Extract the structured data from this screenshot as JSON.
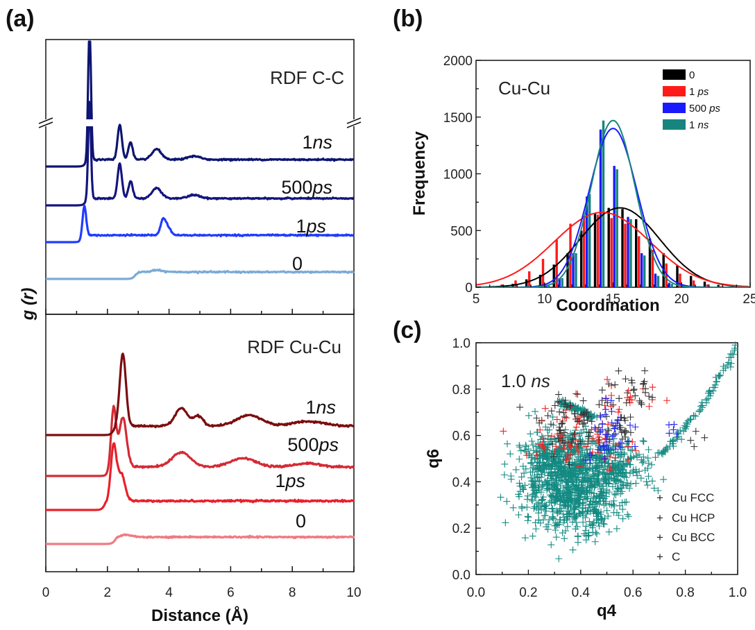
{
  "panels": {
    "a": "(a)",
    "b": "(b)",
    "c": "(c)"
  },
  "chart_data": [
    {
      "id": "a",
      "type": "line",
      "xlabel": "Distance (Å)",
      "ylabel": "g (r)",
      "xlim": [
        0,
        10
      ],
      "x_ticks": [
        "0",
        "2",
        "4",
        "6",
        "8",
        "10"
      ],
      "subplots": [
        {
          "title": "RDF C-C",
          "series": [
            {
              "label": "0",
              "label_text": "0",
              "color": "#7aaad6",
              "onset": 2.9,
              "peaks": [
                [
                  3.6,
                  0.3,
                  0.15
                ]
              ]
            },
            {
              "label": "1ps",
              "label_num": "1",
              "label_unit": "ps",
              "color": "#1f3bff",
              "onset": 1.2,
              "peaks": [
                [
                  1.25,
                  4.5,
                  0.06
                ],
                [
                  3.8,
                  2.0,
                  0.08
                ],
                [
                  3.95,
                  1.2,
                  0.1
                ]
              ]
            },
            {
              "label": "500ps",
              "label_num": "500",
              "label_unit": "ps",
              "color": "#14157e",
              "onset": 1.3,
              "peaks": [
                [
                  1.42,
                  14,
                  0.045
                ],
                [
                  2.4,
                  5.0,
                  0.07
                ],
                [
                  2.75,
                  2.5,
                  0.07
                ],
                [
                  3.6,
                  1.5,
                  0.15
                ],
                [
                  4.8,
                  0.5,
                  0.2
                ]
              ]
            },
            {
              "label": "1ns",
              "label_num": "1",
              "label_unit": "ns",
              "color": "#0d1470",
              "onset": 1.3,
              "peaks": [
                [
                  1.42,
                  20,
                  0.045
                ],
                [
                  2.4,
                  5.0,
                  0.07
                ],
                [
                  2.75,
                  2.5,
                  0.07
                ],
                [
                  3.6,
                  1.5,
                  0.15
                ],
                [
                  4.8,
                  0.5,
                  0.2
                ]
              ]
            }
          ]
        },
        {
          "title": "RDF Cu-Cu",
          "series": [
            {
              "label": "0",
              "label_text": "0",
              "color": "#f07a80",
              "onset": 2.25,
              "peaks": [
                [
                  2.6,
                  0.3,
                  0.2
                ]
              ]
            },
            {
              "label": "1ps",
              "label_num": "1",
              "label_unit": "ps",
              "color": "#e8202a",
              "onset": 1.9,
              "peaks": [
                [
                  2.2,
                  6.0,
                  0.09
                ],
                [
                  2.45,
                  3.0,
                  0.12
                ]
              ]
            },
            {
              "label": "500ps",
              "label_num": "500",
              "label_unit": "ps",
              "color": "#d42a34",
              "onset": 2.05,
              "peaks": [
                [
                  2.2,
                  6.5,
                  0.08
                ],
                [
                  2.5,
                  5.5,
                  0.12
                ],
                [
                  4.4,
                  1.6,
                  0.3
                ],
                [
                  6.4,
                  1.0,
                  0.4
                ],
                [
                  8.5,
                  0.4,
                  0.4
                ]
              ]
            },
            {
              "label": "1ns",
              "label_num": "1",
              "label_unit": "ns",
              "color": "#7a0d10",
              "onset": 2.2,
              "peaks": [
                [
                  2.5,
                  8.0,
                  0.1
                ],
                [
                  4.4,
                  2.0,
                  0.2
                ],
                [
                  4.95,
                  1.1,
                  0.15
                ],
                [
                  6.6,
                  1.2,
                  0.4
                ],
                [
                  8.5,
                  0.5,
                  0.5
                ]
              ]
            }
          ]
        }
      ]
    },
    {
      "id": "b",
      "type": "bar",
      "title": "Cu-Cu",
      "xlabel": "Coordination",
      "ylabel": "Frequency",
      "xlim": [
        5,
        25
      ],
      "ylim": [
        0,
        2000
      ],
      "x_ticks": [
        "5",
        "10",
        "15",
        "20",
        "25"
      ],
      "y_ticks": [
        "0",
        "500",
        "1000",
        "1500",
        "2000"
      ],
      "categories": [
        7,
        8,
        9,
        10,
        11,
        12,
        13,
        14,
        15,
        16,
        17,
        18,
        19,
        20,
        21,
        22,
        23,
        24
      ],
      "legend": {
        "position": "top-right",
        "entries": [
          {
            "num": "0",
            "unit": ""
          },
          {
            "num": "1 ",
            "unit": "ps"
          },
          {
            "num": "500 ",
            "unit": "ps"
          },
          {
            "num": "1 ",
            "unit": "ns"
          }
        ]
      },
      "series": [
        {
          "name": "0",
          "color": "#000000",
          "values": [
            10,
            30,
            70,
            110,
            200,
            300,
            500,
            650,
            700,
            690,
            600,
            430,
            300,
            190,
            100,
            50,
            20,
            8
          ],
          "fit": {
            "mu": 15.5,
            "sigma": 2.9,
            "amp": 700
          }
        },
        {
          "name": "1 ps",
          "color": "#ff1a1a",
          "values": [
            25,
            60,
            140,
            250,
            420,
            560,
            630,
            640,
            610,
            560,
            450,
            330,
            210,
            120,
            60,
            25,
            10,
            4
          ],
          "fit": {
            "mu": 14.2,
            "sigma": 3.5,
            "amp": 660
          }
        },
        {
          "name": "500 ps",
          "color": "#1a1aff",
          "values": [
            0,
            0,
            5,
            20,
            80,
            300,
            800,
            1390,
            1070,
            620,
            300,
            120,
            40,
            10,
            3,
            0,
            0,
            0
          ],
          "fit": {
            "mu": 15.0,
            "sigma": 1.75,
            "amp": 1400
          }
        },
        {
          "name": "1 ns",
          "color": "#17857d",
          "values": [
            0,
            0,
            5,
            20,
            80,
            300,
            820,
            1470,
            1040,
            600,
            280,
            100,
            30,
            8,
            2,
            0,
            0,
            0
          ],
          "fit": {
            "mu": 15.0,
            "sigma": 1.6,
            "amp": 1470
          }
        }
      ]
    },
    {
      "id": "c",
      "type": "scatter",
      "annotation_num": "1.0 ",
      "annotation_unit": "ns",
      "xlabel": "q4",
      "ylabel": "q6",
      "xlim": [
        0,
        1
      ],
      "ylim": [
        0,
        1
      ],
      "x_ticks": [
        "0.0",
        "0.2",
        "0.4",
        "0.6",
        "0.8",
        "1.0"
      ],
      "y_ticks": [
        "0.0",
        "0.2",
        "0.4",
        "0.6",
        "0.8",
        "1.0"
      ],
      "legend": {
        "position": "bottom-right"
      },
      "series": [
        {
          "name": "Cu FCC",
          "color": "#333333",
          "clusters": [
            [
              0.38,
              0.65,
              0.07,
              0.06,
              60
            ],
            [
              0.6,
              0.78,
              0.05,
              0.04,
              25
            ],
            [
              0.55,
              0.62,
              0.04,
              0.04,
              20
            ],
            [
              0.85,
              0.6,
              0.02,
              0.02,
              4
            ]
          ]
        },
        {
          "name": "Cu HCP",
          "color": "#ee2222",
          "clusters": [
            [
              0.35,
              0.6,
              0.08,
              0.07,
              50
            ],
            [
              0.6,
              0.78,
              0.06,
              0.05,
              20
            ],
            [
              0.5,
              0.55,
              0.06,
              0.05,
              20
            ]
          ]
        },
        {
          "name": "Cu BCC",
          "color": "#2222ee",
          "clusters": [
            [
              0.52,
              0.63,
              0.05,
              0.05,
              30
            ],
            [
              0.47,
              0.55,
              0.04,
              0.04,
              12
            ],
            [
              0.75,
              0.62,
              0.02,
              0.03,
              5
            ]
          ]
        },
        {
          "name": "C",
          "color": "#138a82",
          "clusters": [
            [
              0.35,
              0.4,
              0.1,
              0.1,
              700
            ],
            [
              0.52,
              0.47,
              0.09,
              0.06,
              250
            ],
            [
              0.3,
              0.52,
              0.06,
              0.05,
              150
            ],
            [
              0.4,
              0.3,
              0.08,
              0.06,
              150
            ]
          ]
        }
      ],
      "line_segments": [
        {
          "color": "#138a82",
          "from": [
            0.7,
            0.52
          ],
          "to": [
            1.0,
            0.99
          ]
        },
        {
          "color": "#138a82",
          "from": [
            0.32,
            0.74
          ],
          "to": [
            0.45,
            0.68
          ]
        }
      ]
    }
  ]
}
